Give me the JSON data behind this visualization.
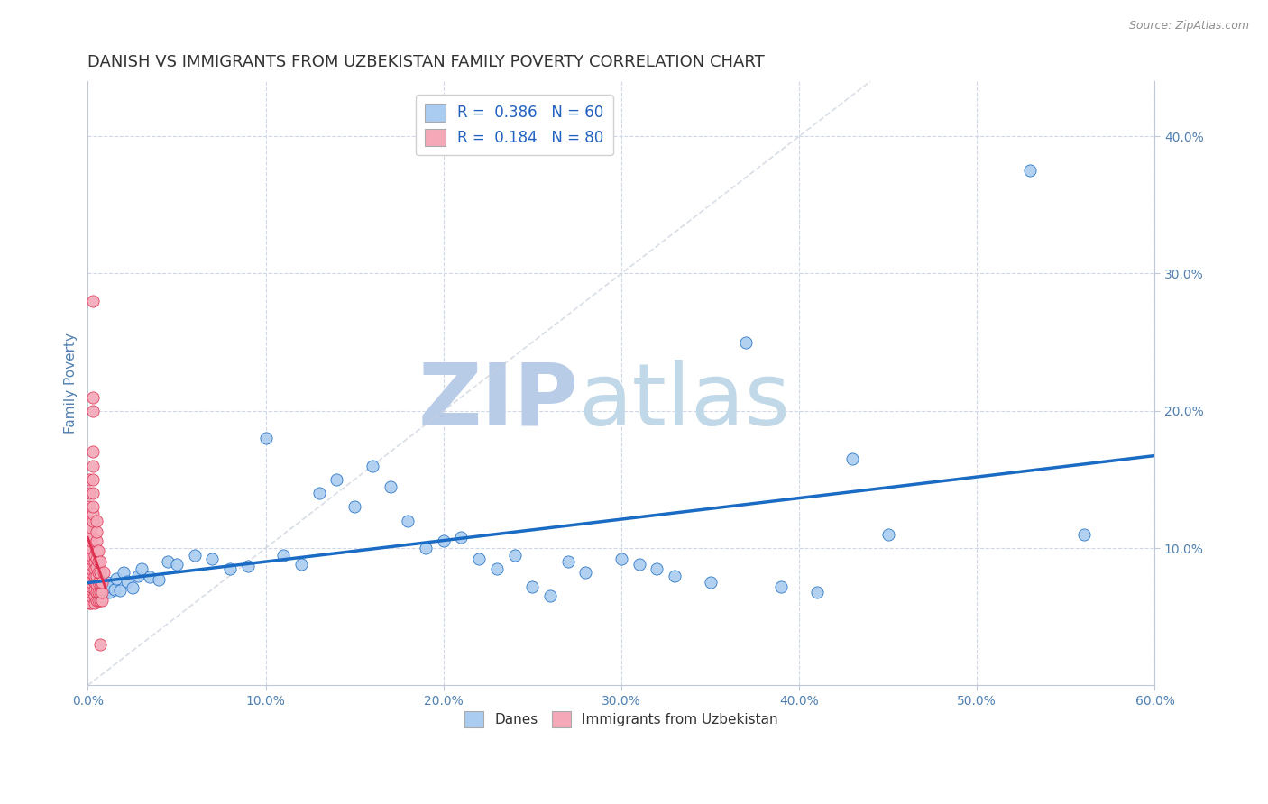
{
  "title": "DANISH VS IMMIGRANTS FROM UZBEKISTAN FAMILY POVERTY CORRELATION CHART",
  "source": "Source: ZipAtlas.com",
  "ylabel": "Family Poverty",
  "legend_label1": "Danes",
  "legend_label2": "Immigrants from Uzbekistan",
  "r1": 0.386,
  "n1": 60,
  "r2": 0.184,
  "n2": 80,
  "color1": "#aaccf0",
  "color2": "#f4a8b8",
  "line_color1": "#1a6bc4",
  "line_color2": "#e03050",
  "xlim": [
    0,
    0.6
  ],
  "ylim": [
    0,
    0.44
  ],
  "background": "#ffffff",
  "grid_color": "#d0d8e8",
  "watermark_zip_color": "#b8cce8",
  "watermark_atlas_color": "#c0d8e8",
  "danes_x": [
    0.001,
    0.002,
    0.003,
    0.004,
    0.005,
    0.006,
    0.007,
    0.008,
    0.009,
    0.01,
    0.011,
    0.012,
    0.013,
    0.015,
    0.016,
    0.018,
    0.02,
    0.022,
    0.025,
    0.028,
    0.03,
    0.035,
    0.04,
    0.045,
    0.05,
    0.06,
    0.07,
    0.08,
    0.09,
    0.1,
    0.11,
    0.12,
    0.13,
    0.14,
    0.15,
    0.16,
    0.17,
    0.18,
    0.19,
    0.2,
    0.21,
    0.22,
    0.23,
    0.24,
    0.25,
    0.26,
    0.27,
    0.28,
    0.3,
    0.31,
    0.32,
    0.33,
    0.35,
    0.37,
    0.39,
    0.41,
    0.43,
    0.45,
    0.53,
    0.56
  ],
  "danes_y": [
    0.065,
    0.07,
    0.068,
    0.072,
    0.066,
    0.071,
    0.069,
    0.073,
    0.067,
    0.074,
    0.075,
    0.068,
    0.072,
    0.07,
    0.078,
    0.069,
    0.082,
    0.076,
    0.071,
    0.08,
    0.085,
    0.079,
    0.077,
    0.09,
    0.088,
    0.095,
    0.092,
    0.085,
    0.087,
    0.18,
    0.095,
    0.088,
    0.14,
    0.15,
    0.13,
    0.16,
    0.145,
    0.12,
    0.1,
    0.105,
    0.108,
    0.092,
    0.085,
    0.095,
    0.072,
    0.065,
    0.09,
    0.082,
    0.092,
    0.088,
    0.085,
    0.08,
    0.075,
    0.25,
    0.072,
    0.068,
    0.165,
    0.11,
    0.375,
    0.11
  ],
  "uzb_x": [
    0.001,
    0.001,
    0.001,
    0.001,
    0.001,
    0.001,
    0.001,
    0.001,
    0.001,
    0.001,
    0.001,
    0.001,
    0.001,
    0.001,
    0.001,
    0.001,
    0.001,
    0.001,
    0.001,
    0.001,
    0.002,
    0.002,
    0.002,
    0.002,
    0.002,
    0.002,
    0.002,
    0.002,
    0.002,
    0.002,
    0.002,
    0.002,
    0.002,
    0.002,
    0.002,
    0.002,
    0.003,
    0.003,
    0.003,
    0.003,
    0.003,
    0.003,
    0.003,
    0.003,
    0.003,
    0.003,
    0.004,
    0.004,
    0.004,
    0.004,
    0.004,
    0.004,
    0.004,
    0.004,
    0.005,
    0.005,
    0.005,
    0.005,
    0.005,
    0.005,
    0.005,
    0.005,
    0.005,
    0.005,
    0.006,
    0.006,
    0.006,
    0.006,
    0.006,
    0.006,
    0.007,
    0.007,
    0.007,
    0.007,
    0.007,
    0.007,
    0.008,
    0.008,
    0.008,
    0.009
  ],
  "uzb_y": [
    0.06,
    0.065,
    0.068,
    0.07,
    0.072,
    0.075,
    0.078,
    0.08,
    0.082,
    0.085,
    0.09,
    0.092,
    0.095,
    0.1,
    0.105,
    0.11,
    0.12,
    0.13,
    0.14,
    0.15,
    0.06,
    0.065,
    0.068,
    0.07,
    0.072,
    0.075,
    0.078,
    0.082,
    0.085,
    0.088,
    0.092,
    0.095,
    0.1,
    0.105,
    0.11,
    0.115,
    0.12,
    0.125,
    0.13,
    0.14,
    0.15,
    0.16,
    0.17,
    0.2,
    0.21,
    0.28,
    0.06,
    0.065,
    0.07,
    0.075,
    0.08,
    0.085,
    0.09,
    0.095,
    0.062,
    0.068,
    0.074,
    0.08,
    0.086,
    0.092,
    0.098,
    0.105,
    0.112,
    0.12,
    0.062,
    0.068,
    0.075,
    0.082,
    0.09,
    0.098,
    0.062,
    0.068,
    0.075,
    0.082,
    0.09,
    0.03,
    0.062,
    0.068,
    0.075,
    0.082
  ],
  "xtick_labels": [
    "0.0%",
    "10.0%",
    "20.0%",
    "30.0%",
    "40.0%",
    "50.0%",
    "60.0%"
  ],
  "xtick_vals": [
    0.0,
    0.1,
    0.2,
    0.3,
    0.4,
    0.5,
    0.6
  ],
  "ytick_labels_right": [
    "10.0%",
    "20.0%",
    "30.0%",
    "40.0%"
  ],
  "ytick_vals_right": [
    0.1,
    0.2,
    0.3,
    0.4
  ],
  "title_fontsize": 13,
  "axis_fontsize": 11,
  "tick_fontsize": 10,
  "tick_color": "#5080b0"
}
